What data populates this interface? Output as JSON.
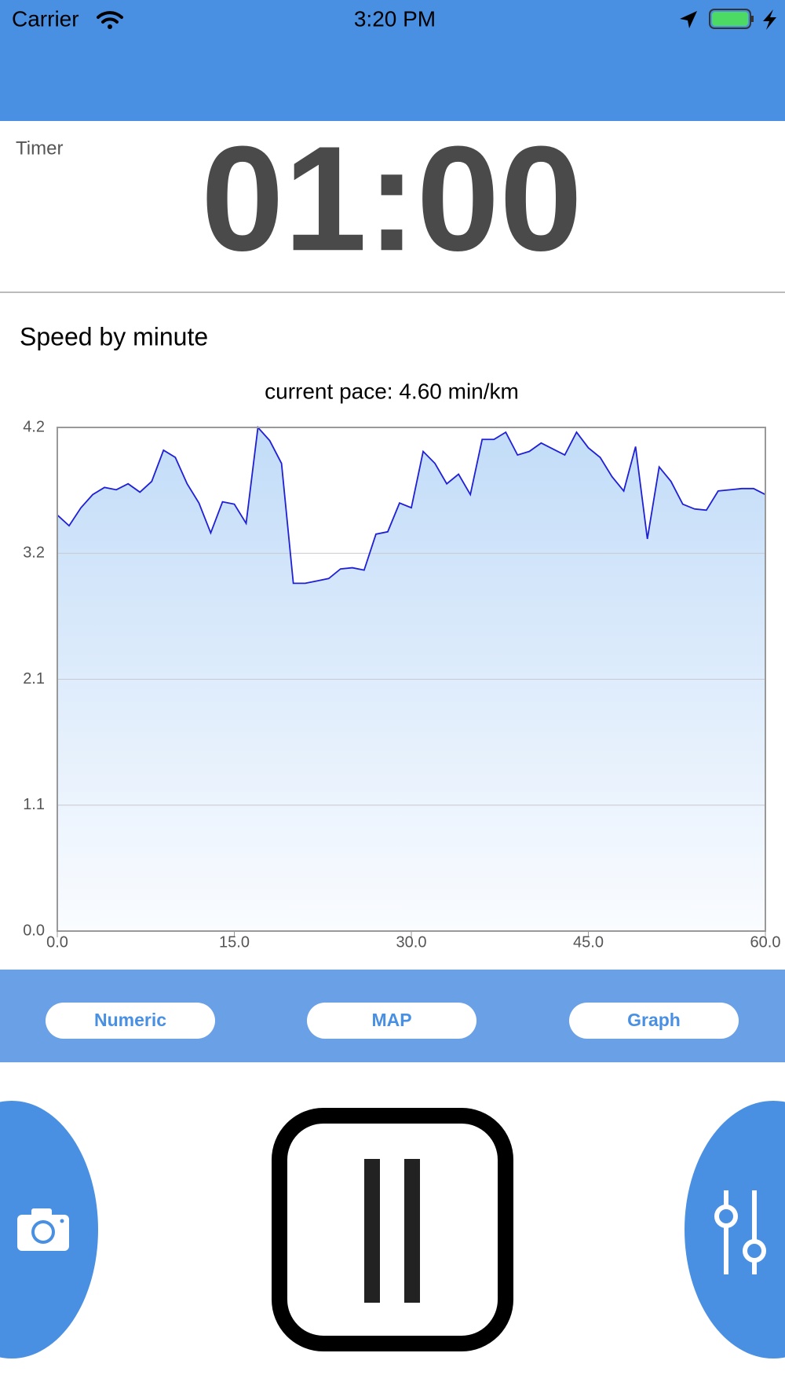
{
  "status_bar": {
    "carrier": "Carrier",
    "time": "3:20 PM"
  },
  "timer": {
    "label": "Timer",
    "value": "01:00"
  },
  "chart_data": {
    "type": "area",
    "title": "Speed by minute",
    "subtitle": "current pace: 4.60 min/km",
    "x": [
      0,
      1,
      2,
      3,
      4,
      5,
      6,
      7,
      8,
      9,
      10,
      11,
      12,
      13,
      14,
      15,
      16,
      17,
      18,
      19,
      20,
      21,
      22,
      23,
      24,
      25,
      26,
      27,
      28,
      29,
      30,
      31,
      32,
      33,
      34,
      35,
      36,
      37,
      38,
      39,
      40,
      41,
      42,
      43,
      44,
      45,
      46,
      47,
      48,
      49,
      50,
      51,
      52,
      53,
      54,
      55,
      56,
      57,
      58,
      59,
      60
    ],
    "values": [
      3.47,
      3.38,
      3.53,
      3.64,
      3.7,
      3.68,
      3.73,
      3.66,
      3.75,
      4.01,
      3.95,
      3.73,
      3.57,
      3.32,
      3.58,
      3.56,
      3.4,
      4.2,
      4.09,
      3.9,
      2.9,
      2.9,
      2.92,
      2.94,
      3.02,
      3.03,
      3.01,
      3.31,
      3.33,
      3.57,
      3.53,
      4.0,
      3.9,
      3.73,
      3.81,
      3.64,
      4.1,
      4.1,
      4.16,
      3.97,
      4.0,
      4.07,
      4.02,
      3.97,
      4.16,
      4.03,
      3.95,
      3.79,
      3.67,
      4.04,
      3.27,
      3.87,
      3.75,
      3.56,
      3.52,
      3.51,
      3.67,
      3.68,
      3.69,
      3.69,
      3.64
    ],
    "color": "#1f1fd6",
    "fill_color": "#c2dcf8",
    "xlim": [
      0,
      60
    ],
    "ylim": [
      0,
      4.2
    ],
    "xticks": [
      {
        "value": 0,
        "label": "0.0"
      },
      {
        "value": 15,
        "label": "15.0"
      },
      {
        "value": 30,
        "label": "30.0"
      },
      {
        "value": 45,
        "label": "45.0"
      },
      {
        "value": 60,
        "label": "60.0"
      }
    ],
    "yticks": [
      {
        "value": 0,
        "label": "0.0"
      },
      {
        "value": 1.05,
        "label": "1.1"
      },
      2.1,
      {
        "value": 3.15,
        "label": "3.2"
      },
      4.2
    ],
    "grid": true
  },
  "tabs": [
    "Numeric",
    "MAP",
    "Graph"
  ]
}
